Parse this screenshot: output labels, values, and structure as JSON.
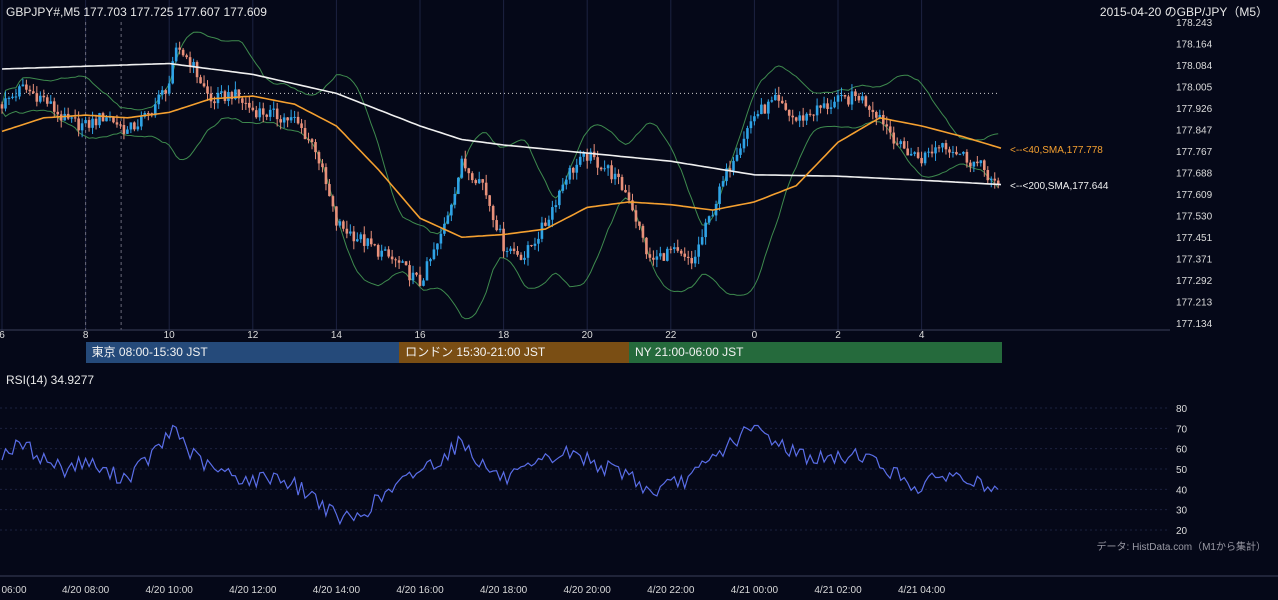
{
  "header": {
    "ohlc_title": "GBPJPY#,M5 177.703 177.725 177.607 177.609",
    "date_title": "2015-04-20 のGBP/JPY（M5）"
  },
  "colors": {
    "background": "#050818",
    "bull_candle": "#2fa3e6",
    "bear_candle": "#e8907a",
    "sma40": "#f5a030",
    "sma200": "#f0f0f0",
    "bollinger": "#3e8a4e",
    "rsi_line": "#5a6ee8",
    "grid": "#1c2240",
    "tokyo": "#254a7a",
    "london": "#7a4e14",
    "ny": "#256a3c"
  },
  "sessions": [
    {
      "label": "東京 08:00-15:30 JST",
      "start": 8.0,
      "end": 15.5,
      "color": "#254a7a"
    },
    {
      "label": "ロンドン 15:30-21:00 JST",
      "start": 15.5,
      "end": 21.0,
      "color": "#7a4e14"
    },
    {
      "label": "NY 21:00-06:00 JST",
      "start": 21.0,
      "end": 30.0,
      "color": "#256a3c"
    }
  ],
  "price_axis": {
    "ticks": [
      "178.243",
      "178.164",
      "178.084",
      "178.005",
      "177.926",
      "177.847",
      "177.767",
      "177.688",
      "177.609",
      "177.530",
      "177.451",
      "177.371",
      "177.292",
      "177.213",
      "177.134"
    ]
  },
  "hour_axis": {
    "ticks": [
      {
        "h": 6,
        "label": "6"
      },
      {
        "h": 8,
        "label": "8"
      },
      {
        "h": 10,
        "label": "10"
      },
      {
        "h": 12,
        "label": "12"
      },
      {
        "h": 14,
        "label": "14"
      },
      {
        "h": 16,
        "label": "16"
      },
      {
        "h": 18,
        "label": "18"
      },
      {
        "h": 20,
        "label": "20"
      },
      {
        "h": 22,
        "label": "22"
      },
      {
        "h": 24,
        "label": "0"
      },
      {
        "h": 26,
        "label": "2"
      },
      {
        "h": 28,
        "label": "4"
      }
    ]
  },
  "time_axis": {
    "ticks": [
      {
        "h": 6,
        "label": "06:00"
      },
      {
        "h": 8,
        "label": "4/20 08:00"
      },
      {
        "h": 10,
        "label": "4/20 10:00"
      },
      {
        "h": 12,
        "label": "4/20 12:00"
      },
      {
        "h": 14,
        "label": "4/20 14:00"
      },
      {
        "h": 16,
        "label": "4/20 16:00"
      },
      {
        "h": 18,
        "label": "4/20 18:00"
      },
      {
        "h": 20,
        "label": "4/20 20:00"
      },
      {
        "h": 22,
        "label": "4/20 22:00"
      },
      {
        "h": 24,
        "label": "4/21 00:00"
      },
      {
        "h": 26,
        "label": "4/21 02:00"
      },
      {
        "h": 28,
        "label": "4/21 04:00"
      }
    ]
  },
  "indicators": {
    "sma40_label": "<--<40,SMA,177.778",
    "sma200_label": "<--<200,SMA,177.644"
  },
  "rsi": {
    "title": "RSI(14) 34.9277",
    "ticks": [
      "80",
      "70",
      "60",
      "50",
      "40",
      "30",
      "20"
    ]
  },
  "source_note": "データ: HistData.com（M1から集計）",
  "chart_data": {
    "type": "candlestick",
    "title": "GBPJPY#,M5",
    "x_unit": "hours from 2015-04-20 00:00 JST",
    "ylim": [
      177.134,
      178.243
    ],
    "price_key_points": [
      [
        6.0,
        177.94
      ],
      [
        6.5,
        178.0
      ],
      [
        7.0,
        177.96
      ],
      [
        7.5,
        177.88
      ],
      [
        8.0,
        177.86
      ],
      [
        8.5,
        177.9
      ],
      [
        9.0,
        177.84
      ],
      [
        9.5,
        177.9
      ],
      [
        10.0,
        178.02
      ],
      [
        10.2,
        178.15
      ],
      [
        10.5,
        178.1
      ],
      [
        11.0,
        177.95
      ],
      [
        11.5,
        177.98
      ],
      [
        12.0,
        177.92
      ],
      [
        12.5,
        177.9
      ],
      [
        13.0,
        177.88
      ],
      [
        13.5,
        177.78
      ],
      [
        14.0,
        177.5
      ],
      [
        14.5,
        177.45
      ],
      [
        15.0,
        177.4
      ],
      [
        15.5,
        177.35
      ],
      [
        16.0,
        177.28
      ],
      [
        16.5,
        177.45
      ],
      [
        17.0,
        177.72
      ],
      [
        17.5,
        177.65
      ],
      [
        18.0,
        177.42
      ],
      [
        18.5,
        177.38
      ],
      [
        19.0,
        177.5
      ],
      [
        19.5,
        177.68
      ],
      [
        20.0,
        177.75
      ],
      [
        20.5,
        177.7
      ],
      [
        21.0,
        177.6
      ],
      [
        21.5,
        177.36
      ],
      [
        22.0,
        177.4
      ],
      [
        22.5,
        177.35
      ],
      [
        23.0,
        177.55
      ],
      [
        23.5,
        177.75
      ],
      [
        24.0,
        177.9
      ],
      [
        24.5,
        177.95
      ],
      [
        25.0,
        177.88
      ],
      [
        25.5,
        177.92
      ],
      [
        26.0,
        177.95
      ],
      [
        26.5,
        177.97
      ],
      [
        27.0,
        177.9
      ],
      [
        27.5,
        177.78
      ],
      [
        28.0,
        177.74
      ],
      [
        28.5,
        177.8
      ],
      [
        29.0,
        177.75
      ],
      [
        29.5,
        177.7
      ],
      [
        29.9,
        177.609
      ]
    ],
    "sma40_key_points": [
      [
        6.0,
        177.84
      ],
      [
        7.0,
        177.89
      ],
      [
        8.0,
        177.9
      ],
      [
        9.0,
        177.89
      ],
      [
        10.0,
        177.91
      ],
      [
        11.0,
        177.96
      ],
      [
        12.0,
        177.97
      ],
      [
        13.0,
        177.94
      ],
      [
        14.0,
        177.86
      ],
      [
        15.0,
        177.7
      ],
      [
        16.0,
        177.52
      ],
      [
        17.0,
        177.45
      ],
      [
        18.0,
        177.46
      ],
      [
        19.0,
        177.48
      ],
      [
        20.0,
        177.56
      ],
      [
        21.0,
        177.58
      ],
      [
        22.0,
        177.57
      ],
      [
        23.0,
        177.55
      ],
      [
        24.0,
        177.58
      ],
      [
        25.0,
        177.64
      ],
      [
        26.0,
        177.8
      ],
      [
        27.0,
        177.89
      ],
      [
        28.0,
        177.86
      ],
      [
        29.0,
        177.82
      ],
      [
        29.9,
        177.778
      ]
    ],
    "sma200_key_points": [
      [
        6.0,
        178.07
      ],
      [
        8.0,
        178.08
      ],
      [
        10.0,
        178.09
      ],
      [
        12.0,
        178.05
      ],
      [
        14.0,
        177.98
      ],
      [
        16.0,
        177.86
      ],
      [
        17.0,
        177.81
      ],
      [
        18.0,
        177.79
      ],
      [
        20.0,
        177.76
      ],
      [
        22.0,
        177.73
      ],
      [
        24.0,
        177.68
      ],
      [
        26.0,
        177.675
      ],
      [
        28.0,
        177.66
      ],
      [
        29.9,
        177.644
      ]
    ],
    "rsi_key_points": [
      [
        6.0,
        58
      ],
      [
        6.5,
        62
      ],
      [
        7.0,
        55
      ],
      [
        7.5,
        50
      ],
      [
        8.0,
        54
      ],
      [
        8.5,
        48
      ],
      [
        9.0,
        46
      ],
      [
        9.5,
        55
      ],
      [
        10.0,
        66
      ],
      [
        10.1,
        72
      ],
      [
        10.5,
        58
      ],
      [
        11.0,
        50
      ],
      [
        11.5,
        47
      ],
      [
        12.0,
        44
      ],
      [
        12.5,
        47
      ],
      [
        13.0,
        42
      ],
      [
        13.5,
        36
      ],
      [
        14.0,
        26
      ],
      [
        14.5,
        26
      ],
      [
        15.0,
        35
      ],
      [
        15.5,
        42
      ],
      [
        16.0,
        50
      ],
      [
        16.5,
        55
      ],
      [
        17.0,
        64
      ],
      [
        17.5,
        52
      ],
      [
        18.0,
        45
      ],
      [
        18.5,
        48
      ],
      [
        19.0,
        54
      ],
      [
        19.5,
        58
      ],
      [
        20.0,
        55
      ],
      [
        20.5,
        50
      ],
      [
        21.0,
        48
      ],
      [
        21.5,
        38
      ],
      [
        22.0,
        42
      ],
      [
        22.5,
        46
      ],
      [
        23.0,
        55
      ],
      [
        23.5,
        64
      ],
      [
        24.0,
        70
      ],
      [
        24.5,
        64
      ],
      [
        25.0,
        58
      ],
      [
        25.5,
        55
      ],
      [
        26.0,
        55
      ],
      [
        26.5,
        58
      ],
      [
        27.0,
        52
      ],
      [
        27.5,
        46
      ],
      [
        28.0,
        40
      ],
      [
        28.5,
        48
      ],
      [
        29.0,
        45
      ],
      [
        29.5,
        42
      ],
      [
        29.9,
        34.9
      ]
    ],
    "rsi_ylim": [
      20,
      80
    ]
  }
}
